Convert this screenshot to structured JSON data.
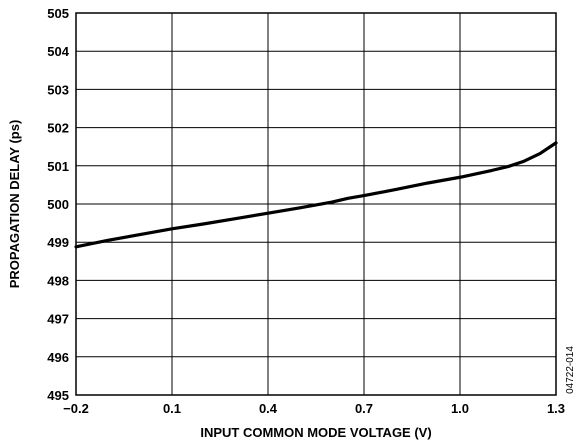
{
  "chart_data": {
    "type": "line",
    "title": "",
    "xlabel": "INPUT COMMON MODE VOLTAGE (V)",
    "ylabel": "PROPAGATION DELAY (ps)",
    "xlim": [
      -0.2,
      1.3
    ],
    "ylim": [
      495,
      505
    ],
    "x_ticks": [
      -0.2,
      0.1,
      0.4,
      0.7,
      1.0,
      1.3
    ],
    "x_tick_labels": [
      "−0.2",
      "0.1",
      "0.4",
      "0.7",
      "1.0",
      "1.3"
    ],
    "y_ticks": [
      495,
      496,
      497,
      498,
      499,
      500,
      501,
      502,
      503,
      504,
      505
    ],
    "y_tick_labels": [
      "495",
      "496",
      "497",
      "498",
      "499",
      "500",
      "501",
      "502",
      "503",
      "504",
      "505"
    ],
    "grid": true,
    "legend": "none",
    "figure_id": "04722-014",
    "series": [
      {
        "x": [
          -0.2,
          -0.1,
          0.0,
          0.1,
          0.2,
          0.3,
          0.4,
          0.5,
          0.6,
          0.65,
          0.7,
          0.8,
          0.9,
          1.0,
          1.1,
          1.15,
          1.2,
          1.25,
          1.3
        ],
        "y": [
          498.88,
          499.05,
          499.2,
          499.35,
          499.48,
          499.62,
          499.76,
          499.9,
          500.05,
          500.15,
          500.22,
          500.38,
          500.55,
          500.7,
          500.88,
          500.98,
          501.12,
          501.32,
          501.6
        ]
      }
    ]
  }
}
